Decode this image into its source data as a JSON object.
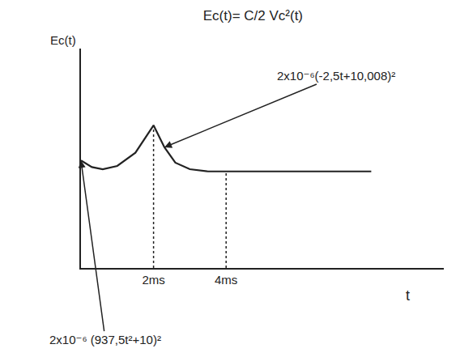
{
  "chart_data": {
    "type": "line",
    "title": "Ec(t)= C/2 Vc²(t)",
    "xlabel": "t",
    "ylabel": "Ec(t)",
    "x": [
      0,
      0.3,
      0.6,
      1,
      1.5,
      2,
      2.3,
      2.6,
      3,
      3.5,
      4,
      6,
      8
    ],
    "values": [
      9.8,
      9.2,
      9.0,
      9.3,
      10.5,
      13,
      11,
      9.6,
      9.0,
      8.8,
      8.8,
      8.8,
      8.8
    ],
    "color": "#222222",
    "line_style": "solid",
    "xlim": [
      0,
      10
    ],
    "ylim": [
      0,
      20
    ],
    "xticks": [
      {
        "value": 2,
        "label": "2ms"
      },
      {
        "value": 4,
        "label": "4ms"
      }
    ],
    "yticks": [],
    "tick_labels": "x",
    "grid": false,
    "annotations": [
      {
        "text": "2x10⁻⁶(-2,5t+10,008)²",
        "x": 2.3,
        "y": 11
      },
      {
        "text": "2x10⁻⁶ (937,5t²+10)²",
        "x": 0,
        "y": 9.8
      }
    ]
  }
}
